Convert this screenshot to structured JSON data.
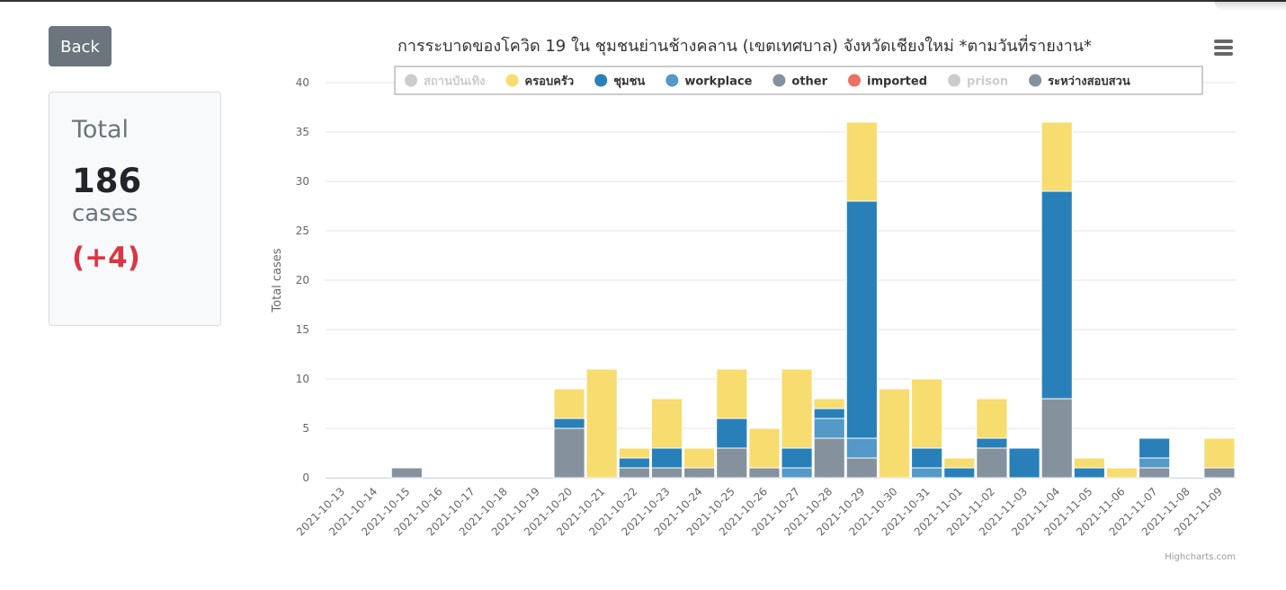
{
  "back_button": {
    "label": "Back"
  },
  "total_card": {
    "title": "Total",
    "count": "186",
    "unit": "cases",
    "delta": "(+4)"
  },
  "chart_data": {
    "type": "bar",
    "stacked": true,
    "title": "การระบาดของโควิด 19 ใน ชุมชนย่านช้างคลาน (เขตเทศบาล) จังหวัดเชียงใหม่ *ตามวันที่รายงาน*",
    "xlabel": "",
    "ylabel": "Total cases",
    "ylim": [
      0,
      40
    ],
    "yticks": [
      0,
      5,
      10,
      15,
      20,
      25,
      30,
      35,
      40
    ],
    "grid": true,
    "legend_position": "top",
    "credit": "Highcharts.com",
    "categories": [
      "2021-10-13",
      "2021-10-14",
      "2021-10-15",
      "2021-10-16",
      "2021-10-17",
      "2021-10-18",
      "2021-10-19",
      "2021-10-20",
      "2021-10-21",
      "2021-10-22",
      "2021-10-23",
      "2021-10-24",
      "2021-10-25",
      "2021-10-26",
      "2021-10-27",
      "2021-10-28",
      "2021-10-29",
      "2021-10-30",
      "2021-10-31",
      "2021-11-01",
      "2021-11-02",
      "2021-11-03",
      "2021-11-04",
      "2021-11-05",
      "2021-11-06",
      "2021-11-07",
      "2021-11-08",
      "2021-11-09"
    ],
    "series": [
      {
        "name": "สถานบันเทิง",
        "color": "#cccccc",
        "visible": false,
        "values": [
          0,
          0,
          0,
          0,
          0,
          0,
          0,
          0,
          0,
          0,
          0,
          0,
          0,
          0,
          0,
          0,
          0,
          0,
          0,
          0,
          0,
          0,
          0,
          0,
          0,
          0,
          0,
          0
        ]
      },
      {
        "name": "ครอบครัว",
        "color": "#f7dc6f",
        "visible": true,
        "values": [
          0,
          0,
          0,
          0,
          0,
          0,
          0,
          3,
          11,
          1,
          5,
          2,
          5,
          4,
          8,
          1,
          8,
          9,
          7,
          1,
          4,
          0,
          7,
          1,
          1,
          0,
          0,
          3
        ]
      },
      {
        "name": "ชุมชน",
        "color": "#2980b9",
        "visible": true,
        "values": [
          0,
          0,
          0,
          0,
          0,
          0,
          0,
          1,
          0,
          1,
          2,
          0,
          3,
          0,
          2,
          1,
          24,
          0,
          2,
          1,
          1,
          3,
          21,
          1,
          0,
          2,
          0,
          0
        ]
      },
      {
        "name": "workplace",
        "color": "#5499c7",
        "visible": true,
        "values": [
          0,
          0,
          0,
          0,
          0,
          0,
          0,
          0,
          0,
          0,
          0,
          0,
          0,
          0,
          1,
          2,
          2,
          0,
          1,
          0,
          0,
          0,
          0,
          0,
          0,
          1,
          0,
          0
        ]
      },
      {
        "name": "other",
        "color": "#85929e",
        "visible": true,
        "values": [
          0,
          0,
          1,
          0,
          0,
          0,
          0,
          5,
          0,
          1,
          1,
          1,
          3,
          1,
          0,
          4,
          2,
          0,
          0,
          0,
          3,
          0,
          8,
          0,
          0,
          1,
          0,
          1
        ]
      },
      {
        "name": "imported",
        "color": "#ec7063",
        "visible": true,
        "values": [
          0,
          0,
          0,
          0,
          0,
          0,
          0,
          0,
          0,
          0,
          0,
          0,
          0,
          0,
          0,
          0,
          0,
          0,
          0,
          0,
          0,
          0,
          0,
          0,
          0,
          0,
          0,
          0
        ]
      },
      {
        "name": "prison",
        "color": "#cccccc",
        "visible": false,
        "values": [
          0,
          0,
          0,
          0,
          0,
          0,
          0,
          0,
          0,
          0,
          0,
          0,
          0,
          0,
          0,
          0,
          0,
          0,
          0,
          0,
          0,
          0,
          0,
          0,
          0,
          0,
          0,
          0
        ]
      },
      {
        "name": "ระหว่างสอบสวน",
        "color": "#85929e",
        "visible": true,
        "values": [
          0,
          0,
          0,
          0,
          0,
          0,
          0,
          0,
          0,
          0,
          0,
          0,
          0,
          0,
          0,
          0,
          0,
          0,
          0,
          0,
          0,
          0,
          0,
          0,
          0,
          0,
          0,
          0
        ]
      }
    ],
    "stack_order_bottom_to_top": [
      "other",
      "workplace",
      "ชุมชน",
      "ครอบครัว"
    ]
  },
  "menu": {
    "icon": "hamburger-menu-icon"
  }
}
